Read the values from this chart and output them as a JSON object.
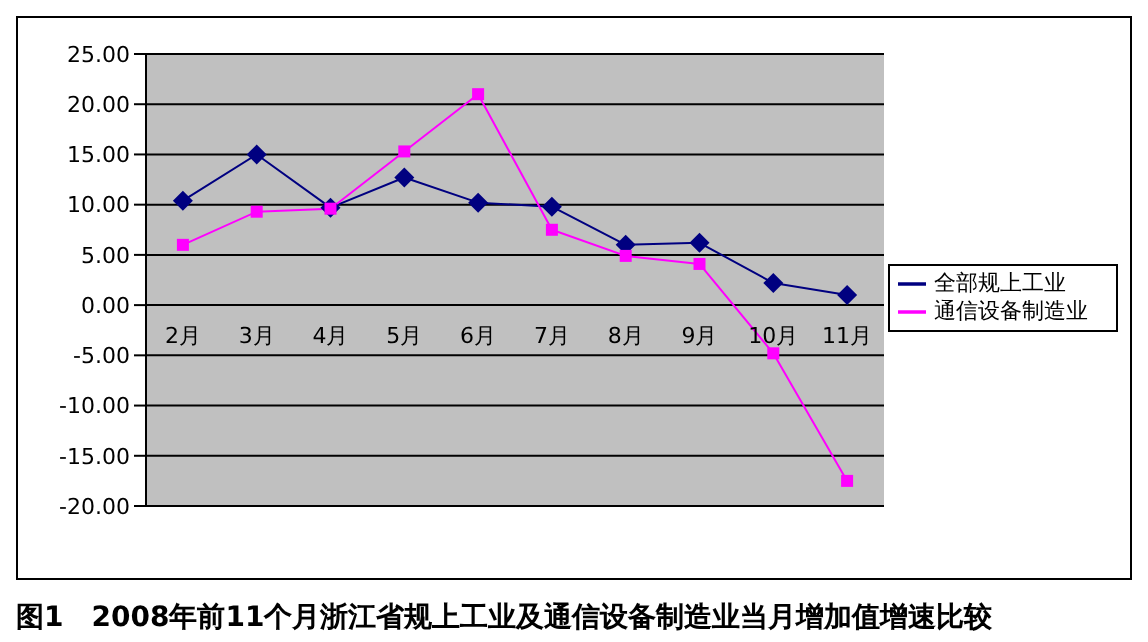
{
  "chart_data": {
    "type": "line",
    "title": "图1　2008年前11个月浙江省规上工业及通信设备制造业当月增加值增速比较",
    "categories": [
      "2月",
      "3月",
      "4月",
      "5月",
      "6月",
      "7月",
      "8月",
      "9月",
      "10月",
      "11月"
    ],
    "series": [
      {
        "name": "全部规上工业",
        "color": "#000080",
        "marker": "diamond",
        "values": [
          10.4,
          15.0,
          9.7,
          12.7,
          10.2,
          9.8,
          6.0,
          6.2,
          2.2,
          1.0
        ]
      },
      {
        "name": "通信设备制造业",
        "color": "#ff00ff",
        "marker": "square",
        "values": [
          6.0,
          9.3,
          9.6,
          15.3,
          21.0,
          7.5,
          4.9,
          4.1,
          -4.8,
          -17.5
        ]
      }
    ],
    "ylim": [
      -20,
      25
    ],
    "yticks": [
      {
        "value": -20,
        "label": "-20.00"
      },
      {
        "value": -15,
        "label": "-15.00"
      },
      {
        "value": -10,
        "label": "-10.00"
      },
      {
        "value": -5,
        "label": "-5.00"
      },
      {
        "value": 0,
        "label": "0.00"
      },
      {
        "value": 5,
        "label": "5.00"
      },
      {
        "value": 10,
        "label": "10.00"
      },
      {
        "value": 15,
        "label": "15.00"
      },
      {
        "value": 20,
        "label": "20.00"
      },
      {
        "value": 25,
        "label": "25.00"
      }
    ],
    "grid": "y",
    "legend": "right",
    "line_style": "solid"
  }
}
